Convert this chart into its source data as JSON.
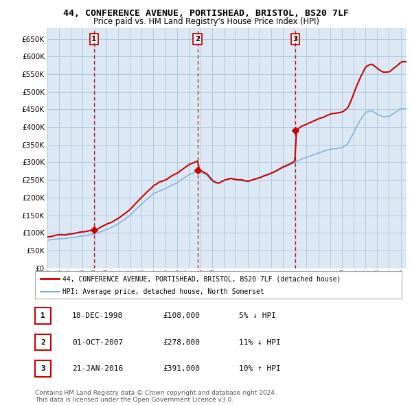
{
  "title": "44, CONFERENCE AVENUE, PORTISHEAD, BRISTOL, BS20 7LF",
  "subtitle": "Price paid vs. HM Land Registry's House Price Index (HPI)",
  "ylabel_ticks": [
    0,
    50000,
    100000,
    150000,
    200000,
    250000,
    300000,
    350000,
    400000,
    450000,
    500000,
    550000,
    600000,
    650000
  ],
  "ylim": [
    0,
    680000
  ],
  "xlim_start": 1995.0,
  "xlim_end": 2025.5,
  "sale_points": [
    {
      "label": "1",
      "year": 1998.96,
      "price": 108000
    },
    {
      "label": "2",
      "year": 2007.75,
      "price": 278000
    },
    {
      "label": "3",
      "year": 2016.05,
      "price": 391000
    }
  ],
  "legend_entries": [
    {
      "label": "44, CONFERENCE AVENUE, PORTISHEAD, BRISTOL, BS20 7LF (detached house)",
      "color": "#cc0000",
      "lw": 1.5
    },
    {
      "label": "HPI: Average price, detached house, North Somerset",
      "color": "#7ab0d4",
      "lw": 1.2
    }
  ],
  "plot_bg_color": "#dce9f5",
  "grid_color": "#b0c8e0",
  "sale_line_color": "#cc0000",
  "table_rows": [
    {
      "num": "1",
      "date": "18-DEC-1998",
      "price": "£108,000",
      "hpi": "5% ↓ HPI"
    },
    {
      "num": "2",
      "date": "01-OCT-2007",
      "price": "£278,000",
      "hpi": "11% ↓ HPI"
    },
    {
      "num": "3",
      "date": "21-JAN-2016",
      "price": "£391,000",
      "hpi": "10% ↑ HPI"
    }
  ],
  "footnote": "Contains HM Land Registry data © Crown copyright and database right 2024.\nThis data is licensed under the Open Government Licence v3.0.",
  "background_color": "#ffffff"
}
